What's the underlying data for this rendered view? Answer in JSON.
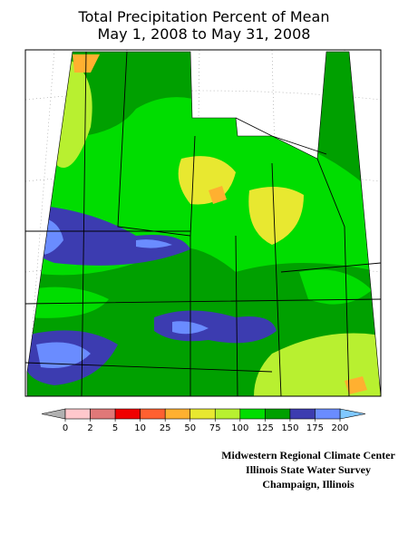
{
  "header": {
    "title": "Total Precipitation Percent of Mean",
    "subtitle": "May 1, 2008 to May 31, 2008"
  },
  "legend": {
    "ticks": [
      0,
      2,
      5,
      10,
      25,
      50,
      75,
      100,
      125,
      150,
      175,
      200
    ],
    "colors": [
      "#ffc8cc",
      "#e07878",
      "#f00000",
      "#ff6030",
      "#ffb030",
      "#e8e830",
      "#b8f030",
      "#00dd00",
      "#00a000",
      "#3c3cb0",
      "#6a8cff"
    ],
    "below_color": "#b0b0b0",
    "above_color": "#80c8ff"
  },
  "credits": [
    "Midwestern Regional Climate Center",
    "Illinois State Water Survey",
    "Champaign, Illinois"
  ]
}
